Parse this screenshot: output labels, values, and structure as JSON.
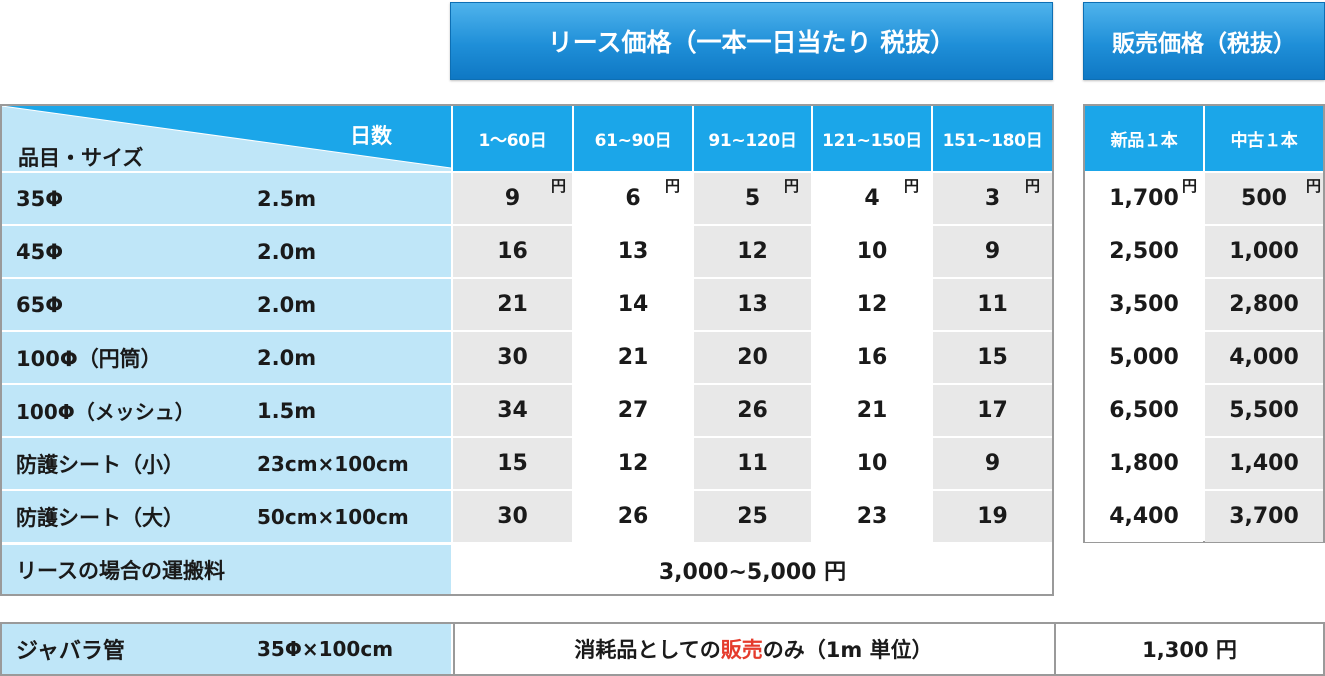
{
  "banners": {
    "lease": "リース価格（一本一日当たり 税抜）",
    "sale": "販売価格（税抜）"
  },
  "header": {
    "days_label": "日数",
    "item_label": "品目・サイズ",
    "periods": [
      "1～60日",
      "61~90日",
      "91~120日",
      "121~150日",
      "151~180日"
    ],
    "sale_cols": [
      "新品１本",
      "中古１本"
    ]
  },
  "yen_unit": "円",
  "rows": [
    {
      "name": "35Φ",
      "size": "2.5m",
      "lease": [
        "9",
        "6",
        "5",
        "4",
        "3"
      ],
      "sale": [
        "1,700",
        "500"
      ]
    },
    {
      "name": "45Φ",
      "size": "2.0m",
      "lease": [
        "16",
        "13",
        "12",
        "10",
        "9"
      ],
      "sale": [
        "2,500",
        "1,000"
      ]
    },
    {
      "name": "65Φ",
      "size": "2.0m",
      "lease": [
        "21",
        "14",
        "13",
        "12",
        "11"
      ],
      "sale": [
        "3,500",
        "2,800"
      ]
    },
    {
      "name": "100Φ（円筒）",
      "size": "2.0m",
      "lease": [
        "30",
        "21",
        "20",
        "16",
        "15"
      ],
      "sale": [
        "5,000",
        "4,000"
      ]
    },
    {
      "name": "100Φ（メッシュ）",
      "size": "1.5m",
      "lease": [
        "34",
        "27",
        "26",
        "21",
        "17"
      ],
      "sale": [
        "6,500",
        "5,500"
      ]
    },
    {
      "name": "防護シート（小）",
      "size": "23cm×100cm",
      "lease": [
        "15",
        "12",
        "11",
        "10",
        "9"
      ],
      "sale": [
        "1,800",
        "1,400"
      ]
    },
    {
      "name": "防護シート（大）",
      "size": "50cm×100cm",
      "lease": [
        "30",
        "26",
        "25",
        "23",
        "19"
      ],
      "sale": [
        "4,400",
        "3,700"
      ]
    }
  ],
  "shipping": {
    "label": "リースの場合の運搬料",
    "value": "3,000~5,000 円"
  },
  "jabara": {
    "name": "ジャバラ管",
    "size": "35Φ×100cm",
    "note_before": "消耗品としての",
    "note_highlight": "販売",
    "note_after": "のみ（1m 単位）",
    "price": "1,300 円",
    "highlight_color": "#e53b2c"
  },
  "colors": {
    "banner_blue": "#1f8fd8",
    "header_blue": "#1ba6e9",
    "label_bg": "#bfe6f8",
    "cell_gray": "#e8e8e8"
  }
}
